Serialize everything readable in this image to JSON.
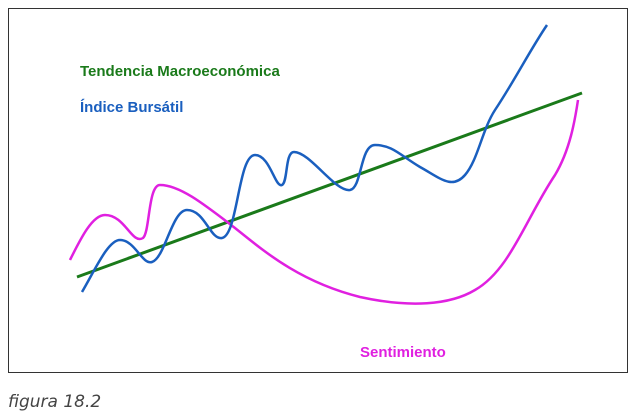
{
  "figure": {
    "labels": {
      "trend": "Tendencia Macroeconómica",
      "index": "Índice Bursátil",
      "sentiment": "Sentimiento"
    },
    "caption": "figura 18.2"
  }
}
